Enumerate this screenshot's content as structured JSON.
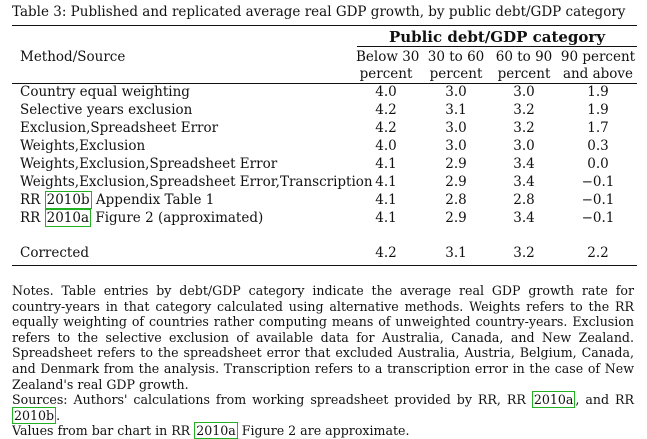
{
  "caption": "Table 3: Published and replicated average real GDP growth, by public debt/GDP category",
  "header": {
    "group_label": "Public debt/GDP category",
    "method_label": "Method/Source",
    "columns": [
      {
        "line1": "Below 30",
        "line2": "percent"
      },
      {
        "line1": "30 to 60",
        "line2": "percent"
      },
      {
        "line1": "60 to 90",
        "line2": "percent"
      },
      {
        "line1": "90 percent",
        "line2": "and above"
      }
    ]
  },
  "rows": [
    {
      "label": "Country equal weighting",
      "values": [
        "4.0",
        "3.0",
        "3.0",
        "1.9"
      ]
    },
    {
      "label": "Selective years exclusion",
      "values": [
        "4.2",
        "3.1",
        "3.2",
        "1.9"
      ]
    },
    {
      "label": "Exclusion,Spreadsheet Error",
      "values": [
        "4.2",
        "3.0",
        "3.2",
        "1.7"
      ]
    },
    {
      "label": "Weights,Exclusion",
      "values": [
        "4.0",
        "3.0",
        "3.0",
        "0.3"
      ]
    },
    {
      "label": "Weights,Exclusion,Spreadsheet Error",
      "values": [
        "4.1",
        "2.9",
        "3.4",
        "0.0"
      ]
    },
    {
      "label": "Weights,Exclusion,Spreadsheet Error,Transcription",
      "values": [
        "4.1",
        "2.9",
        "3.4",
        "−0.1"
      ]
    },
    {
      "label_pre": "RR ",
      "label_link": "2010b",
      "label_post": " Appendix Table 1",
      "values": [
        "4.1",
        "2.8",
        "2.8",
        "−0.1"
      ]
    },
    {
      "label_pre": "RR ",
      "label_link": "2010a",
      "label_post": " Figure 2 (approximated)",
      "values": [
        "4.1",
        "2.9",
        "3.4",
        "−0.1"
      ]
    }
  ],
  "corrected": {
    "label": "Corrected",
    "values": [
      "4.2",
      "3.1",
      "3.2",
      "2.2"
    ]
  },
  "notes": {
    "main": "Notes. Table entries by debt/GDP category indicate the average real GDP growth rate for country-years in that category calculated using alternative methods.  Weights refers to the RR equally weighting of countries rather computing means of unweighted country-years. Exclusion refers to the selective exclusion of available data for Australia, Canada, and New Zealand. Spreadsheet refers to the spreadsheet error that excluded Australia, Austria, Belgium, Canada, and Denmark from the analysis. Transcription refers to a transcription error in the case of New Zealand's real GDP growth.",
    "sources_pre": "Sources: Authors' calculations from working spreadsheet provided by RR, RR ",
    "sources_link1": "2010a",
    "sources_mid": ", and RR ",
    "sources_link2": "2010b",
    "sources_post": ".",
    "values_pre": "Values from bar chart in RR ",
    "values_link": "2010a",
    "values_post": " Figure 2 are approximate."
  },
  "colors": {
    "link_border": "#23b123",
    "text": "#111111"
  }
}
